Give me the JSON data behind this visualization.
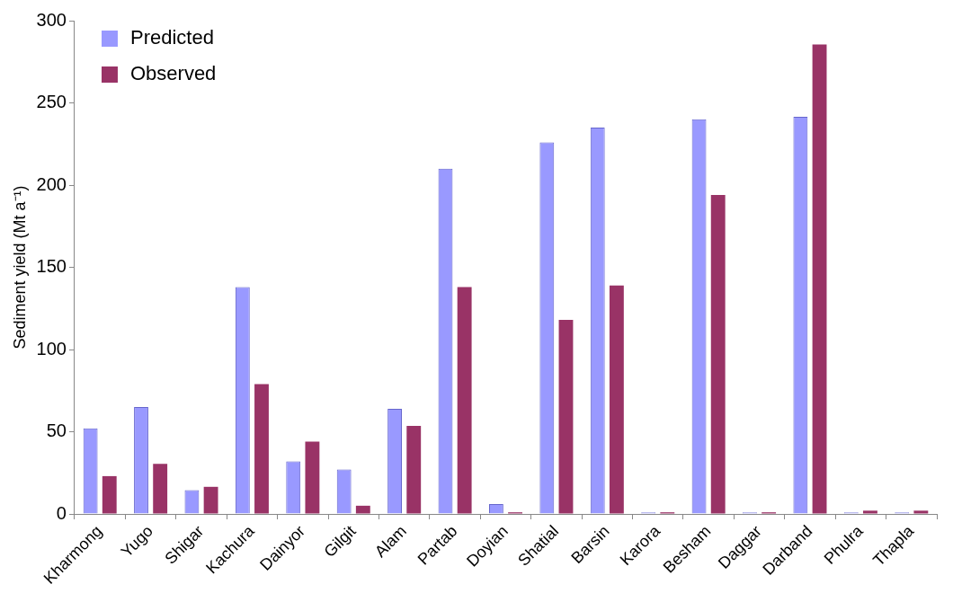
{
  "chart_data": {
    "type": "bar",
    "ylabel": "Sediment yield (Mt a⁻¹)",
    "categories": [
      "Kharmong",
      "Yugo",
      "Shigar",
      "Kachura",
      "Dainyor",
      "Gilgit",
      "Alam",
      "Partab",
      "Doyian",
      "Shatial",
      "Barsin",
      "Karora",
      "Besham",
      "Daggar",
      "Darband",
      "Phulra",
      "Thapla"
    ],
    "series": [
      {
        "name": "Predicted",
        "color": "#9999ff",
        "values": [
          52,
          65,
          14.5,
          138,
          32,
          27,
          64,
          210,
          6,
          226,
          235,
          1,
          240,
          1,
          241.5,
          1,
          1
        ]
      },
      {
        "name": "Observed",
        "color": "#993366",
        "values": [
          23,
          30.5,
          16.5,
          79,
          44,
          5,
          53.5,
          138,
          1,
          118,
          139,
          1,
          194,
          1,
          285.5,
          2,
          2
        ]
      }
    ],
    "ylim": [
      0,
      300
    ],
    "yticks": [
      0,
      50,
      100,
      150,
      200,
      250,
      300
    ],
    "grid": false,
    "legend": "top left"
  }
}
